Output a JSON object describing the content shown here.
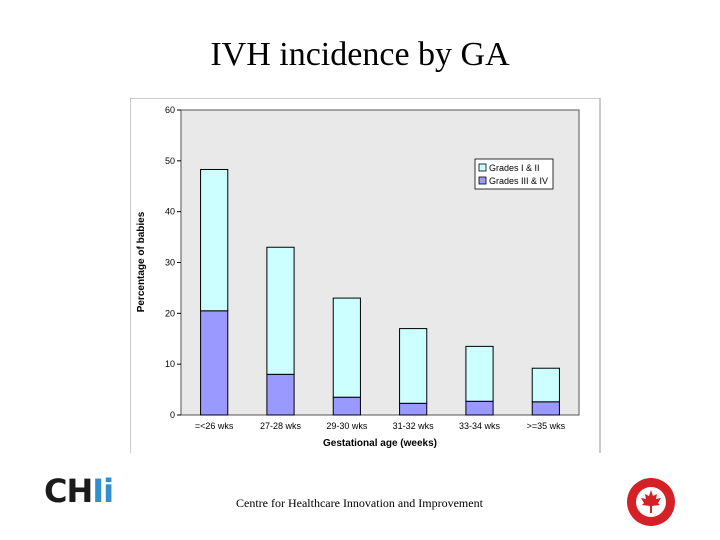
{
  "slide": {
    "title": "IVH incidence by GA",
    "footer": "Centre for Healthcare Innovation and Improvement",
    "logo_text_main": "CH",
    "logo_text_accent": "Ii"
  },
  "chart_data": {
    "type": "bar",
    "stacked": true,
    "categories": [
      "=<26 wks",
      "27-28 wks",
      "29-30 wks",
      "31-32 wks",
      "33-34 wks",
      ">=35 wks"
    ],
    "series": [
      {
        "name": "Grades III & IV",
        "values": [
          20.5,
          8,
          3.5,
          2.3,
          2.7,
          2.6
        ],
        "color": "#9999ff"
      },
      {
        "name": "Grades I & II",
        "values": [
          27.8,
          25,
          19.5,
          14.7,
          10.8,
          6.6
        ],
        "color": "#ccffff"
      }
    ],
    "legend": [
      "Grades I & II",
      "Grades III & IV"
    ],
    "legend_placement": "top-right",
    "xlabel": "Gestational age (weeks)",
    "ylabel": "Percentage of babies",
    "ylim": [
      0,
      60
    ],
    "yticks": [
      "0",
      "10",
      "20",
      "30",
      "40",
      "50",
      "60"
    ],
    "grid": false,
    "plot_background": "#e9e9e9"
  },
  "colors": {
    "logo_accent": "#2f8fd0",
    "seal": "#d42027"
  }
}
